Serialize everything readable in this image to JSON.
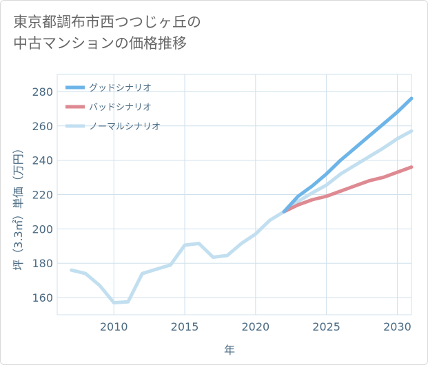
{
  "title_lines": [
    "東京都調布市西つつじヶ丘の",
    "中古マンションの価格推移"
  ],
  "colors": {
    "good": "#6db5e8",
    "bad": "#de8a92",
    "normal": "#c2dff0",
    "grid": "#cfe0ec",
    "axis_text": "#4a6a82"
  },
  "chart_data": {
    "type": "line",
    "title": "東京都調布市西つつじヶ丘の中古マンションの価格推移",
    "xlabel": "年",
    "ylabel": "坪（3.3㎡）単価（万円）",
    "xlim": [
      2006,
      2031
    ],
    "ylim": [
      150,
      290
    ],
    "x_ticks": [
      2010,
      2015,
      2020,
      2025,
      2030
    ],
    "y_ticks": [
      160,
      180,
      200,
      220,
      240,
      260,
      280
    ],
    "grid": true,
    "legend_position": "top-left",
    "series": [
      {
        "name": "グッドシナリオ",
        "color": "#6db5e8",
        "x": [
          2022,
          2023,
          2024,
          2025,
          2026,
          2027,
          2028,
          2029,
          2030,
          2031
        ],
        "values": [
          210,
          219,
          225,
          232,
          240,
          247,
          254,
          261,
          268,
          276
        ]
      },
      {
        "name": "バッドシナリオ",
        "color": "#de8a92",
        "x": [
          2022,
          2023,
          2024,
          2025,
          2026,
          2027,
          2028,
          2029,
          2030,
          2031
        ],
        "values": [
          210,
          214,
          217,
          219,
          222,
          225,
          228,
          230,
          233,
          236
        ]
      },
      {
        "name": "ノーマルシナリオ",
        "color": "#c2dff0",
        "x": [
          2007,
          2008,
          2009,
          2010,
          2011,
          2012,
          2013,
          2014,
          2015,
          2016,
          2017,
          2018,
          2019,
          2020,
          2021,
          2022,
          2023,
          2024,
          2025,
          2026,
          2027,
          2028,
          2029,
          2030,
          2031
        ],
        "values": [
          176,
          174,
          167,
          157,
          157.5,
          174,
          176.5,
          179,
          190.5,
          191.5,
          183.5,
          184.5,
          191.5,
          197,
          205,
          210,
          216,
          221,
          225.5,
          232,
          237,
          242,
          247,
          252.5,
          257
        ]
      }
    ]
  }
}
